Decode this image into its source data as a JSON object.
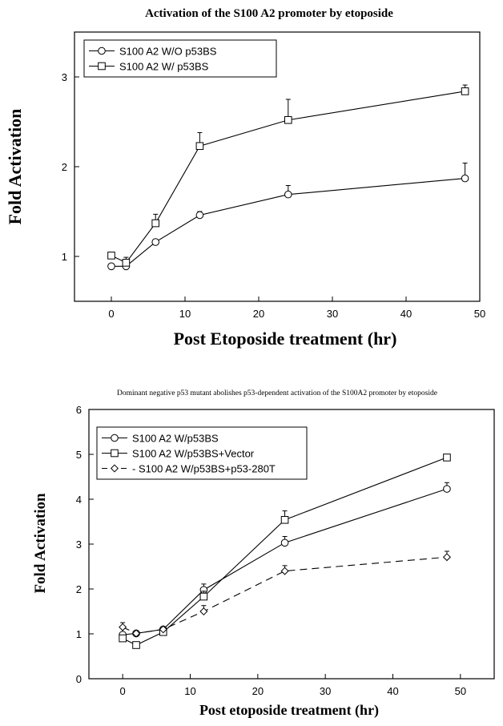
{
  "chart_data": [
    {
      "type": "line",
      "title": "Activation of the S100 A2 promoter by etoposide",
      "xlabel": "Post Etoposide treatment (hr)",
      "ylabel": "Fold Activation",
      "xlim": [
        -5,
        50
      ],
      "ylim": [
        0.5,
        3.5
      ],
      "xticks": [
        0,
        10,
        20,
        30,
        40,
        50
      ],
      "yticks": [
        1,
        2,
        3
      ],
      "legend_position": "top-left",
      "grid": false,
      "series": [
        {
          "name": "S100 A2 W/O p53BS",
          "marker": "circle",
          "dash": "solid",
          "x": [
            0,
            2,
            6,
            12,
            24,
            48
          ],
          "y": [
            0.89,
            0.89,
            1.16,
            1.46,
            1.69,
            1.87
          ],
          "err": [
            0,
            0,
            0,
            0.04,
            0.1,
            0.17
          ]
        },
        {
          "name": "S100 A2 W/ p53BS",
          "marker": "square",
          "dash": "solid",
          "x": [
            0,
            2,
            6,
            12,
            24,
            48
          ],
          "y": [
            1.01,
            0.93,
            1.37,
            2.23,
            2.52,
            2.84
          ],
          "err": [
            0,
            0.06,
            0.1,
            0.15,
            0.23,
            0.07
          ]
        }
      ]
    },
    {
      "type": "line",
      "title": "Dominant negative p53 mutant abolishes p53-dependent activation of the S100A2 promoter by etoposide",
      "xlabel": "Post etoposide treatment (hr)",
      "ylabel": "Fold Activation",
      "xlim": [
        -5,
        55
      ],
      "ylim": [
        0,
        6
      ],
      "xticks": [
        0,
        10,
        20,
        30,
        40,
        50
      ],
      "yticks": [
        0,
        1,
        2,
        3,
        4,
        5,
        6
      ],
      "legend_position": "top-left",
      "grid": false,
      "series": [
        {
          "name": "S100 A2 W/p53BS",
          "marker": "circle",
          "dash": "solid",
          "x": [
            0,
            2,
            6,
            12,
            24,
            48
          ],
          "y": [
            0.98,
            1.01,
            1.1,
            1.98,
            3.03,
            4.23
          ],
          "err": [
            0,
            0,
            0,
            0.13,
            0.14,
            0.14
          ]
        },
        {
          "name": "S100 A2 W/p53BS+Vector",
          "marker": "square",
          "dash": "solid",
          "x": [
            0,
            2,
            6,
            12,
            24,
            48
          ],
          "y": [
            0.9,
            0.75,
            1.04,
            1.83,
            3.54,
            4.93
          ],
          "err": [
            0,
            0,
            0,
            0.12,
            0.2,
            0
          ]
        },
        {
          "name": "S100 A2 W/p53BS+p53-280T",
          "legend_label": "- S100 A2 W/p53BS+p53-280T",
          "marker": "diamond",
          "dash": "dashed",
          "x": [
            0,
            2,
            6,
            12,
            24,
            48
          ],
          "y": [
            1.15,
            1.01,
            1.1,
            1.5,
            2.4,
            2.71
          ],
          "err": [
            0.1,
            0,
            0,
            0.13,
            0.12,
            0.13
          ]
        }
      ]
    }
  ]
}
